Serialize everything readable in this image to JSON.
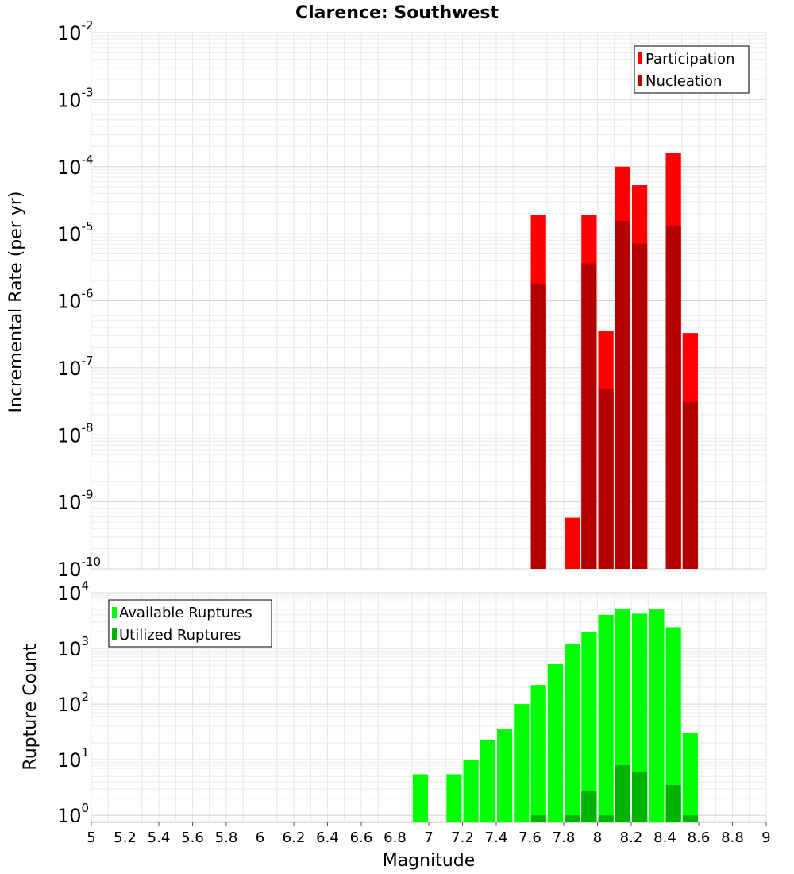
{
  "chart_data": [
    {
      "type": "bar",
      "title": "Clarence: Southwest",
      "xlabel": "",
      "ylabel": "Incremental Rate (per yr)",
      "yscale": "log",
      "ylim": [
        1e-10,
        0.01
      ],
      "xlim": [
        5,
        9
      ],
      "y_ticks": [
        {
          "base": "10",
          "exp": "-10"
        },
        {
          "base": "10",
          "exp": "-9"
        },
        {
          "base": "10",
          "exp": "-8"
        },
        {
          "base": "10",
          "exp": "-7"
        },
        {
          "base": "10",
          "exp": "-6"
        },
        {
          "base": "10",
          "exp": "-5"
        },
        {
          "base": "10",
          "exp": "-4"
        },
        {
          "base": "10",
          "exp": "-3"
        },
        {
          "base": "10",
          "exp": "-2"
        }
      ],
      "grid": true,
      "legend_position": "top-right",
      "series": [
        {
          "name": "Participation",
          "color": "#ff0000",
          "x": [
            7.65,
            7.85,
            7.95,
            8.05,
            8.15,
            8.25,
            8.45,
            8.55
          ],
          "values": [
            1.9e-05,
            5.8e-10,
            1.9e-05,
            3.5e-07,
            0.0001,
            5.3e-05,
            0.00016,
            3.3e-07
          ]
        },
        {
          "name": "Nucleation",
          "color": "#b30000",
          "x": [
            7.65,
            7.95,
            8.05,
            8.15,
            8.25,
            8.45,
            8.55
          ],
          "values": [
            1.8e-06,
            3.6e-06,
            4.9e-08,
            1.55e-05,
            7.1e-06,
            1.3e-05,
            3.1e-08
          ]
        }
      ]
    },
    {
      "type": "bar",
      "title": "",
      "xlabel": "Magnitude",
      "ylabel": "Rupture Count",
      "yscale": "log",
      "ylim": [
        0.75,
        10000
      ],
      "xlim": [
        5,
        9
      ],
      "x_ticks": [
        "5",
        "5.2",
        "5.4",
        "5.6",
        "5.8",
        "6",
        "6.2",
        "6.4",
        "6.6",
        "6.8",
        "7",
        "7.2",
        "7.4",
        "7.6",
        "7.8",
        "8",
        "8.2",
        "8.4",
        "8.6",
        "8.8",
        "9"
      ],
      "y_ticks": [
        {
          "base": "10",
          "exp": "0"
        },
        {
          "base": "10",
          "exp": "1"
        },
        {
          "base": "10",
          "exp": "2"
        },
        {
          "base": "10",
          "exp": "3"
        },
        {
          "base": "10",
          "exp": "4"
        }
      ],
      "grid": true,
      "legend_position": "top-left",
      "series": [
        {
          "name": "Available Ruptures",
          "color": "#00ff00",
          "x": [
            6.95,
            7.15,
            7.25,
            7.35,
            7.45,
            7.55,
            7.65,
            7.75,
            7.85,
            7.95,
            8.05,
            8.15,
            8.25,
            8.35,
            8.45,
            8.55
          ],
          "values": [
            5.5,
            5.5,
            10,
            23,
            35,
            100,
            220,
            520,
            1200,
            2000,
            4000,
            5200,
            4200,
            5000,
            2400,
            30
          ]
        },
        {
          "name": "Utilized Ruptures",
          "color": "#00b300",
          "x": [
            7.65,
            7.85,
            7.95,
            8.05,
            8.15,
            8.25,
            8.45,
            8.55
          ],
          "values": [
            1,
            1,
            2.7,
            1,
            8,
            6,
            3.5,
            1
          ]
        }
      ]
    }
  ]
}
